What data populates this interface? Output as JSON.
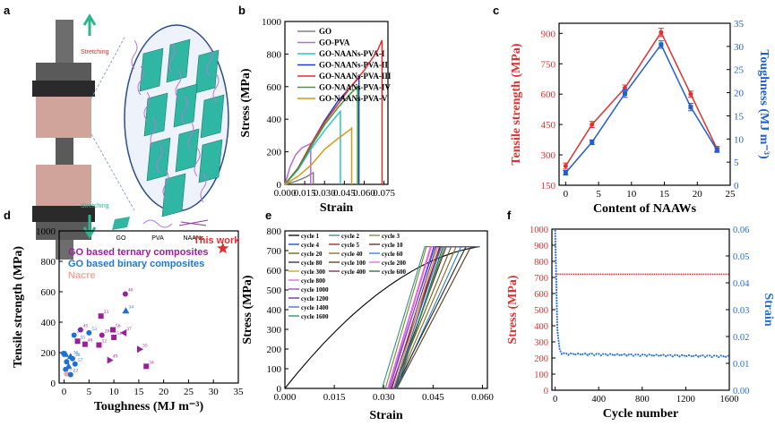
{
  "panels": {
    "a": {
      "letter": "a",
      "label_top": "Stretching",
      "label_bottom": "Stretching",
      "legend": [
        "GO",
        "PVA",
        "NAANs"
      ]
    },
    "b": {
      "letter": "b"
    },
    "c": {
      "letter": "c"
    },
    "d": {
      "letter": "d",
      "annotations": [
        {
          "text": "GO based ternary composites",
          "color": "#9b1f9b"
        },
        {
          "text": "GO based binary composites",
          "color": "#1f77d4"
        },
        {
          "text": "Nacre",
          "color": "#f0a8a0"
        },
        {
          "text": "This work",
          "color": "#e53030"
        }
      ]
    },
    "e": {
      "letter": "e"
    },
    "f": {
      "letter": "f"
    }
  },
  "chart_data": [
    {
      "id": "b",
      "type": "line",
      "xlabel": "Strain",
      "ylabel": "Stress (MPa)",
      "xlim": [
        0,
        0.078
      ],
      "ylim": [
        0,
        1000
      ],
      "xticks": [
        0,
        0.015,
        0.03,
        0.045,
        0.06,
        0.075
      ],
      "xtick_labels": [
        "0.000",
        "0.015",
        "0.030",
        "0.045",
        "0.060",
        "0.075"
      ],
      "yticks": [
        0,
        200,
        400,
        600,
        800,
        1000
      ],
      "legend_position": "top-left",
      "series": [
        {
          "name": "GO",
          "color": "#808080",
          "points": [
            [
              0,
              0
            ],
            [
              0.008,
              18
            ],
            [
              0.016,
              45
            ],
            [
              0.0215,
              72
            ],
            [
              0.0215,
              0
            ]
          ]
        },
        {
          "name": "GO-PVA",
          "color": "#b86bd6",
          "points": [
            [
              0,
              0
            ],
            [
              0.004,
              110
            ],
            [
              0.008,
              180
            ],
            [
              0.013,
              225
            ],
            [
              0.0195,
              250
            ],
            [
              0.0195,
              0
            ]
          ]
        },
        {
          "name": "GO-NAANs-PVA-I",
          "color": "#2ec4d0",
          "points": [
            [
              0,
              0
            ],
            [
              0.01,
              90
            ],
            [
              0.02,
              220
            ],
            [
              0.03,
              330
            ],
            [
              0.038,
              410
            ],
            [
              0.042,
              448
            ],
            [
              0.042,
              0
            ]
          ]
        },
        {
          "name": "GO-NAANs-PVA-II",
          "color": "#1f3fcf",
          "points": [
            [
              0,
              0
            ],
            [
              0.01,
              100
            ],
            [
              0.02,
              250
            ],
            [
              0.03,
              390
            ],
            [
              0.04,
              510
            ],
            [
              0.05,
              600
            ],
            [
              0.056,
              655
            ],
            [
              0.056,
              0
            ]
          ]
        },
        {
          "name": "GO-NAANs-PVA-III",
          "color": "#e03030",
          "points": [
            [
              0,
              0
            ],
            [
              0.01,
              100
            ],
            [
              0.02,
              250
            ],
            [
              0.03,
              380
            ],
            [
              0.04,
              490
            ],
            [
              0.05,
              600
            ],
            [
              0.06,
              700
            ],
            [
              0.07,
              820
            ],
            [
              0.0735,
              885
            ],
            [
              0.0735,
              0
            ]
          ]
        },
        {
          "name": "GO-NAANs-PVA-IV",
          "color": "#35a035",
          "points": [
            [
              0,
              0
            ],
            [
              0.01,
              95
            ],
            [
              0.02,
              235
            ],
            [
              0.03,
              365
            ],
            [
              0.04,
              470
            ],
            [
              0.05,
              560
            ],
            [
              0.055,
              600
            ],
            [
              0.055,
              0
            ]
          ]
        },
        {
          "name": "GO-NAANs-PVA-V",
          "color": "#d49a15",
          "points": [
            [
              0,
              0
            ],
            [
              0.01,
              50
            ],
            [
              0.02,
              120
            ],
            [
              0.03,
              215
            ],
            [
              0.04,
              280
            ],
            [
              0.05,
              340
            ],
            [
              0.0505,
              345
            ],
            [
              0.0505,
              0
            ]
          ]
        }
      ]
    },
    {
      "id": "c",
      "type": "line",
      "xlabel": "Content of NAAWs",
      "ylabel": "Tensile strength (MPa)",
      "ylabel_right": "Toughness (MJ m⁻³)",
      "xlim": [
        -1,
        25
      ],
      "ylim": [
        150,
        950
      ],
      "ylim_right": [
        0,
        35
      ],
      "xticks": [
        0,
        5,
        10,
        15,
        20,
        25
      ],
      "yticks": [
        150,
        300,
        450,
        600,
        750,
        900
      ],
      "yticks_right": [
        0,
        5,
        10,
        15,
        20,
        25,
        30,
        35
      ],
      "series": [
        {
          "name": "Tensile strength",
          "axis": "left",
          "color": "#e03030",
          "x": [
            0,
            4,
            9,
            14.5,
            19,
            23
          ],
          "y": [
            245,
            450,
            630,
            905,
            600,
            330
          ],
          "err": [
            15,
            15,
            15,
            20,
            15,
            12
          ]
        },
        {
          "name": "Toughness",
          "axis": "right",
          "color": "#1f5fd4",
          "x": [
            0,
            4,
            9,
            14.5,
            19,
            23
          ],
          "y": [
            2.7,
            9.3,
            19.8,
            30.4,
            16.9,
            7.6
          ],
          "err": [
            0.5,
            0.5,
            0.8,
            0.8,
            0.8,
            0.5
          ]
        }
      ]
    },
    {
      "id": "d",
      "type": "scatter",
      "xlabel": "Toughness (MJ m⁻³)",
      "ylabel": "Tensile strength (MPa)",
      "xlim": [
        -1,
        35
      ],
      "ylim": [
        0,
        1000
      ],
      "xticks": [
        0,
        5,
        10,
        15,
        20,
        25,
        30,
        35
      ],
      "yticks": [
        0,
        200,
        400,
        600,
        800,
        1000
      ],
      "points": [
        {
          "x": 12.3,
          "y": 585,
          "label": "40",
          "group": "ternary",
          "marker": "circle"
        },
        {
          "x": 12.4,
          "y": 475,
          "label": "34",
          "group": "binary",
          "marker": "triangle-up"
        },
        {
          "x": 7.4,
          "y": 440,
          "label": "33",
          "group": "ternary",
          "marker": "square"
        },
        {
          "x": 3.3,
          "y": 350,
          "label": "45",
          "group": "ternary",
          "marker": "circle"
        },
        {
          "x": 2,
          "y": 315,
          "label": "29",
          "group": "binary",
          "marker": "circle"
        },
        {
          "x": 5,
          "y": 330,
          "label": "53",
          "group": "binary",
          "marker": "circle"
        },
        {
          "x": 9.8,
          "y": 350,
          "label": "56",
          "group": "ternary",
          "marker": "square"
        },
        {
          "x": 12,
          "y": 330,
          "label": "37",
          "group": "ternary",
          "marker": "triangle-left"
        },
        {
          "x": 7.6,
          "y": 315,
          "label": "28",
          "group": "ternary",
          "marker": "circle"
        },
        {
          "x": 10,
          "y": 300,
          "label": "54",
          "group": "ternary",
          "marker": "square"
        },
        {
          "x": 2.7,
          "y": 275,
          "label": "55",
          "group": "ternary",
          "marker": "square"
        },
        {
          "x": 4.2,
          "y": 255,
          "label": "46",
          "group": "ternary",
          "marker": "square"
        },
        {
          "x": 7,
          "y": 250,
          "label": "52",
          "group": "ternary",
          "marker": "square"
        },
        {
          "x": 15.2,
          "y": 222,
          "label": "35",
          "group": "ternary",
          "marker": "triangle-right"
        },
        {
          "x": -0.1,
          "y": 195,
          "label": "",
          "group": "binary",
          "marker": "circle"
        },
        {
          "x": 0.3,
          "y": 190,
          "label": "",
          "group": "binary",
          "marker": "triangle-up"
        },
        {
          "x": 1.3,
          "y": 175,
          "label": "36",
          "group": "binary",
          "marker": "triangle-up"
        },
        {
          "x": 1.7,
          "y": 160,
          "label": "38",
          "group": "binary",
          "marker": "circle"
        },
        {
          "x": 9.2,
          "y": 150,
          "label": "49",
          "group": "ternary",
          "marker": "triangle-right"
        },
        {
          "x": 0.5,
          "y": 140,
          "label": "",
          "group": "binary",
          "marker": "circle"
        },
        {
          "x": 2.2,
          "y": 125,
          "label": "57",
          "group": "binary",
          "marker": "circle"
        },
        {
          "x": 0.9,
          "y": 110,
          "label": "",
          "group": "binary",
          "marker": "triangle-up"
        },
        {
          "x": 16.5,
          "y": 110,
          "label": "34",
          "group": "ternary",
          "marker": "square"
        },
        {
          "x": 0.3,
          "y": 90,
          "label": "",
          "group": "binary",
          "marker": "circle"
        },
        {
          "x": 0.5,
          "y": 60,
          "label": "24",
          "group": "nacre",
          "marker": "circle"
        },
        {
          "x": 1.3,
          "y": 55,
          "label": "22",
          "group": "binary",
          "marker": "circle"
        },
        {
          "x": 31.9,
          "y": 885,
          "label": "",
          "group": "this_work",
          "marker": "star"
        }
      ]
    },
    {
      "id": "e",
      "type": "line",
      "xlabel": "Strain",
      "ylabel": "Stress (MPa)",
      "xlim": [
        0,
        0.0615
      ],
      "ylim": [
        0,
        800
      ],
      "xticks": [
        0,
        0.015,
        0.03,
        0.045,
        0.06
      ],
      "xtick_labels": [
        "0.000",
        "0.015",
        "0.030",
        "0.045",
        "0.060"
      ],
      "yticks": [
        0,
        100,
        200,
        300,
        400,
        500,
        600,
        700,
        800
      ],
      "legend_position": "top-left",
      "series": [
        {
          "name": "cycle 1",
          "color": "#000000",
          "start": 0,
          "top": 0.059
        },
        {
          "name": "cycle 2",
          "color": "#3a8c8c",
          "start": 0.0295,
          "top": 0.0425
        },
        {
          "name": "cycle 3",
          "color": "#7a8a2a",
          "start": 0.0305,
          "top": 0.043
        },
        {
          "name": "cycle 4",
          "color": "#1f3fcf",
          "start": 0.0315,
          "top": 0.0455
        },
        {
          "name": "cycle 5",
          "color": "#a01f1f",
          "start": 0.0322,
          "top": 0.0472
        },
        {
          "name": "cycle 10",
          "color": "#5a2a1a",
          "start": 0.033,
          "top": 0.049
        },
        {
          "name": "cycle 20",
          "color": "#6a5a10",
          "start": 0.033,
          "top": 0.0505
        },
        {
          "name": "cycle 40",
          "color": "#8a6a2a",
          "start": 0.0335,
          "top": 0.052
        },
        {
          "name": "cycle 60",
          "color": "#2a7fd4",
          "start": 0.034,
          "top": 0.0535
        },
        {
          "name": "cycle 80",
          "color": "#2a2a2a",
          "start": 0.0335,
          "top": 0.055
        },
        {
          "name": "cycle 100",
          "color": "#5a3a1a",
          "start": 0.034,
          "top": 0.0565
        },
        {
          "name": "cycle 200",
          "color": "#e066e0",
          "start": 0.0315,
          "top": 0.0445
        },
        {
          "name": "cycle 300",
          "color": "#c8a020",
          "start": 0.033,
          "top": 0.0465
        },
        {
          "name": "cycle 400",
          "color": "#7a1f5a",
          "start": 0.0335,
          "top": 0.047
        },
        {
          "name": "cycle 600",
          "color": "#2a6a2a",
          "start": 0.034,
          "top": 0.048
        },
        {
          "name": "cycle 800",
          "color": "#e060e0",
          "start": 0.0312,
          "top": 0.0442
        },
        {
          "name": "cycle 1000",
          "color": "#9a40c0",
          "start": 0.0318,
          "top": 0.0452
        },
        {
          "name": "cycle 1200",
          "color": "#6a2aa0",
          "start": 0.0325,
          "top": 0.046
        },
        {
          "name": "cycle 1400",
          "color": "#3a6ad4",
          "start": 0.0332,
          "top": 0.0475
        },
        {
          "name": "cycle 1600",
          "color": "#1f8c6a",
          "start": 0.0338,
          "top": 0.0485
        }
      ],
      "peak_stress": 720
    },
    {
      "id": "f",
      "type": "scatter",
      "xlabel": "Cycle number",
      "ylabel": "Stress (MPa)",
      "ylabel_right": "Strain",
      "xlim": [
        -30,
        1600
      ],
      "ylim": [
        0,
        1000
      ],
      "ylim_right": [
        0,
        0.06
      ],
      "xticks": [
        0,
        400,
        800,
        1200,
        1600
      ],
      "yticks": [
        0,
        100,
        200,
        300,
        400,
        500,
        600,
        700,
        800,
        900,
        1000
      ],
      "yticks_right": [
        0,
        0.01,
        0.02,
        0.03,
        0.04,
        0.05,
        0.06
      ],
      "ytick_labels_right": [
        "0.00",
        "0.01",
        "0.02",
        "0.03",
        "0.04",
        "0.05",
        "0.06"
      ],
      "series": [
        {
          "name": "Stress",
          "axis": "left",
          "color": "#e03030",
          "constant": 720
        },
        {
          "name": "Strain",
          "axis": "right",
          "color": "#1f6fd4",
          "start": 0.06,
          "plateau": 0.0135,
          "end": 0.0125
        }
      ]
    }
  ]
}
